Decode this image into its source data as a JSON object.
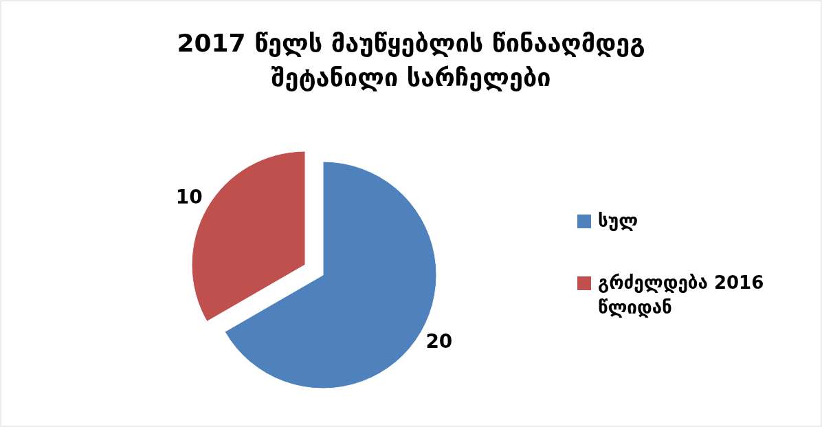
{
  "chart_data": {
    "type": "pie",
    "title": "2017 წელს მაუწყებლის წინააღმდეგ შეტანილი სარჩელები",
    "categories": [
      "სულ",
      "გრძელდება 2016 წლიდან"
    ],
    "values": [
      20,
      10
    ],
    "colors": [
      "#4f81bd",
      "#c0504d"
    ],
    "data_labels": true,
    "legend": "right"
  }
}
